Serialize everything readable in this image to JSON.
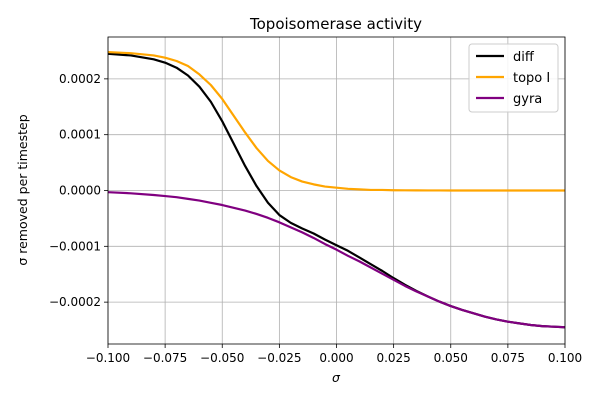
{
  "chart_data": {
    "type": "line",
    "title": "Topoisomerase activity",
    "xlabel": "σ",
    "ylabel": "σ removed per timestep",
    "xlim": [
      -0.1,
      0.1
    ],
    "ylim": [
      -0.000275,
      0.000275
    ],
    "xticks": [
      -0.1,
      -0.075,
      -0.05,
      -0.025,
      0.0,
      0.025,
      0.05,
      0.075,
      0.1
    ],
    "xtick_labels": [
      "−0.100",
      "−0.075",
      "−0.050",
      "−0.025",
      "0.000",
      "0.025",
      "0.050",
      "0.075",
      "0.100"
    ],
    "yticks": [
      -0.0002,
      -0.0001,
      0.0,
      0.0001,
      0.0002
    ],
    "ytick_labels": [
      "−0.0002",
      "−0.0001",
      "0.0000",
      "0.0001",
      "0.0002"
    ],
    "grid": true,
    "legend_position": "top-right",
    "x": [
      -0.1,
      -0.09,
      -0.08,
      -0.075,
      -0.07,
      -0.065,
      -0.06,
      -0.055,
      -0.05,
      -0.045,
      -0.04,
      -0.035,
      -0.03,
      -0.025,
      -0.02,
      -0.015,
      -0.01,
      -0.005,
      0.0,
      0.005,
      0.01,
      0.015,
      0.02,
      0.025,
      0.03,
      0.035,
      0.04,
      0.045,
      0.05,
      0.055,
      0.06,
      0.065,
      0.07,
      0.075,
      0.08,
      0.085,
      0.09,
      0.095,
      0.1
    ],
    "series": [
      {
        "name": "diff",
        "color": "#000000",
        "values": [
          0.000245,
          0.000242,
          0.000235,
          0.000229,
          0.00022,
          0.000206,
          0.000186,
          0.000159,
          0.000124,
          8.4e-05,
          4.4e-05,
          8e-06,
          -2.2e-05,
          -4.4e-05,
          -5.8e-05,
          -6.8e-05,
          -7.7e-05,
          -8.8e-05,
          -9.8e-05,
          -0.000108,
          -0.00012,
          -0.000132,
          -0.000144,
          -0.000157,
          -0.000169,
          -0.00018,
          -0.00019,
          -0.000199,
          -0.000207,
          -0.000214,
          -0.00022,
          -0.000226,
          -0.000231,
          -0.000235,
          -0.000238,
          -0.000241,
          -0.000243,
          -0.000244,
          -0.000245
        ]
      },
      {
        "name": "topo I",
        "color": "#ffa500",
        "values": [
          0.000248,
          0.000246,
          0.000242,
          0.000238,
          0.000232,
          0.000223,
          0.000208,
          0.000189,
          0.000164,
          0.000134,
          0.000104,
          7.6e-05,
          5.3e-05,
          3.6e-05,
          2.4e-05,
          1.6e-05,
          1.1e-05,
          7e-06,
          5e-06,
          3e-06,
          2e-06,
          1e-06,
          1e-06,
          5e-07,
          3e-07,
          2e-07,
          1e-07,
          1e-07,
          0.0,
          0.0,
          0.0,
          0.0,
          0.0,
          0.0,
          0.0,
          0.0,
          0.0,
          0.0,
          0.0
        ]
      },
      {
        "name": "gyra",
        "color": "#800080",
        "values": [
          -3e-06,
          -5e-06,
          -8e-06,
          -1e-05,
          -1.2e-05,
          -1.5e-05,
          -1.8e-05,
          -2.2e-05,
          -2.6e-05,
          -3.1e-05,
          -3.6e-05,
          -4.2e-05,
          -4.9e-05,
          -5.7e-05,
          -6.6e-05,
          -7.5e-05,
          -8.5e-05,
          -9.6e-05,
          -0.000106,
          -0.000117,
          -0.000127,
          -0.000138,
          -0.000149,
          -0.00016,
          -0.000171,
          -0.000181,
          -0.00019,
          -0.000199,
          -0.000207,
          -0.000214,
          -0.00022,
          -0.000226,
          -0.000231,
          -0.000235,
          -0.000238,
          -0.000241,
          -0.000243,
          -0.000244,
          -0.000245
        ]
      }
    ]
  }
}
